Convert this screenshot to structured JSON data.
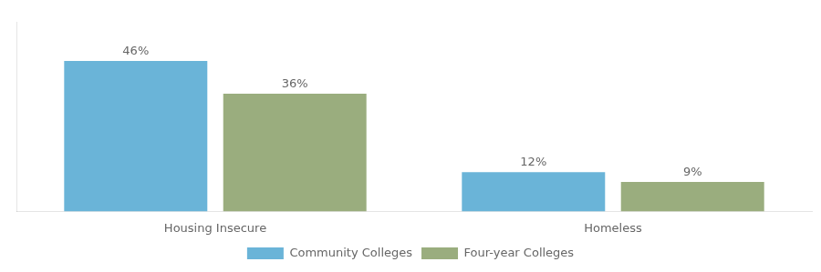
{
  "chart_data": {
    "type": "bar",
    "categories": [
      "Housing Insecure",
      "Homeless"
    ],
    "series": [
      {
        "name": "Community Colleges",
        "color": "#6ab4d8",
        "values": [
          46,
          12
        ],
        "value_labels": [
          "46%",
          "12%"
        ]
      },
      {
        "name": "Four-year Colleges",
        "color": "#9aad7e",
        "values": [
          36,
          9
        ],
        "value_labels": [
          "36%",
          "9%"
        ]
      }
    ],
    "ylim": [
      0,
      58
    ],
    "grid": false,
    "legend": "bottom",
    "data_labels": true,
    "tick_labels": "x"
  }
}
